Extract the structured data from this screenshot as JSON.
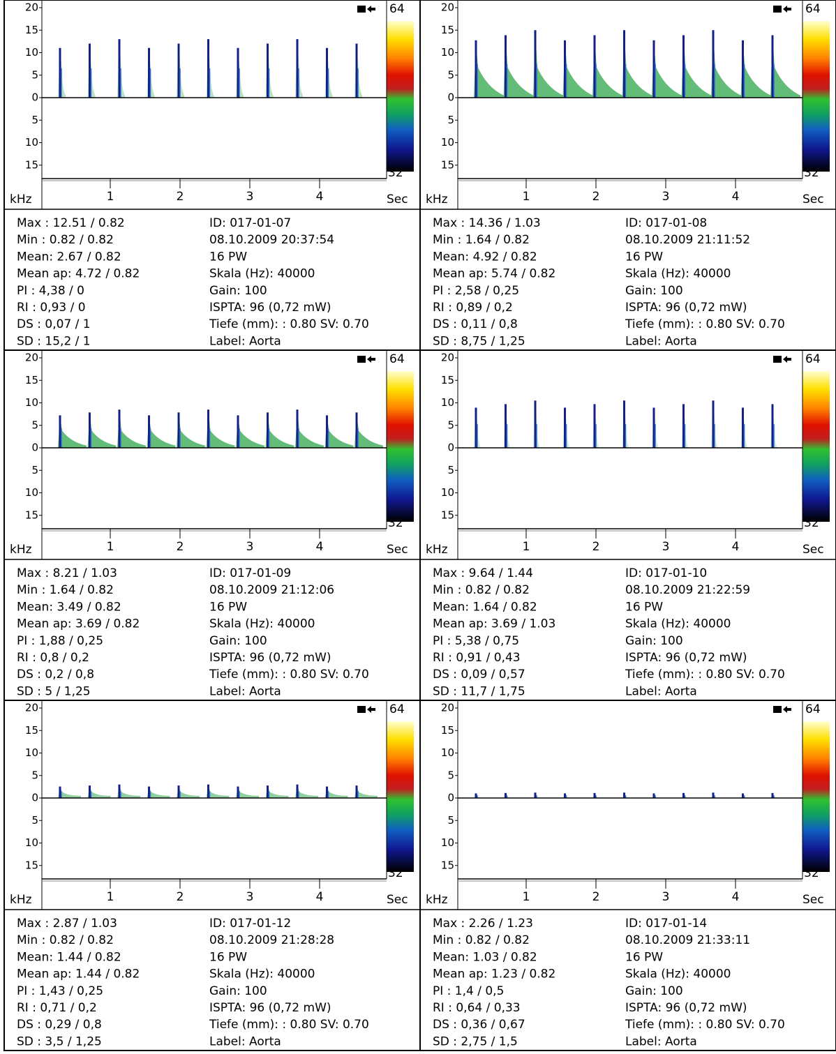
{
  "axes": {
    "ylim": [
      -20,
      20
    ],
    "yticks": [
      20,
      15,
      10,
      5,
      0,
      {
        "value": -5,
        "label": "5"
      },
      {
        "value": -10,
        "label": "10"
      },
      {
        "value": -15,
        "label": "15"
      }
    ],
    "xlim": [
      0,
      5
    ],
    "xticks": [
      1,
      2,
      3,
      4
    ],
    "y_unit": "kHz",
    "x_unit": "Sec",
    "scale_top": "64",
    "scale_bottom": "32"
  },
  "panels": [
    {
      "stats": [
        "Max : 12.51 / 0.82",
        "Min : 0.82 / 0.82",
        "Mean: 2.67 / 0.82",
        "Mean ap: 4.72 / 0.82",
        "PI : 4,38 / 0",
        "RI : 0,93 / 0",
        "DS : 0,07 / 1",
        "SD : 15,2 / 1"
      ],
      "info": [
        "ID: 017-01-07",
        "08.10.2009 20:37:54",
        "16 PW",
        "Skala (Hz): 40000",
        "Gain: 100",
        "ISPTA: 96 (0,72 mW)",
        "Tiefe (mm): : 0.80 SV: 0.70",
        "Label: Aorta"
      ]
    },
    {
      "stats": [
        "Max : 14.36 / 1.03",
        "Min : 1.64 / 0.82",
        "Mean: 4.92 / 0.82",
        "Mean ap: 5.74 / 0.82",
        "PI : 2,58 / 0,25",
        "RI : 0,89 / 0,2",
        "DS : 0,11 / 0,8",
        "SD : 8,75 / 1,25"
      ],
      "info": [
        "ID: 017-01-08",
        "08.10.2009 21:11:52",
        "16 PW",
        "Skala (Hz): 40000",
        "Gain: 100",
        "ISPTA: 96 (0,72 mW)",
        "Tiefe (mm): : 0.80 SV: 0.70",
        "Label: Aorta"
      ]
    },
    {
      "stats": [
        "Max : 8.21 / 1.03",
        "Min : 1.64 / 0.82",
        "Mean: 3.49 / 0.82",
        "Mean ap: 3.69 / 0.82",
        "PI : 1,88 / 0,25",
        "RI : 0,8 / 0,2",
        "DS : 0,2 / 0,8",
        "SD : 5 / 1,25"
      ],
      "info": [
        "ID: 017-01-09",
        "08.10.2009 21:12:06",
        "16 PW",
        "Skala (Hz): 40000",
        "Gain: 100",
        "ISPTA: 96 (0,72 mW)",
        "Tiefe (mm): : 0.80 SV: 0.70",
        "Label: Aorta"
      ]
    },
    {
      "stats": [
        "Max : 9.64 / 1.44",
        "Min : 0.82 / 0.82",
        "Mean: 1.64 / 0.82",
        "Mean ap: 3.69 / 1.03",
        "PI : 5,38 / 0,75",
        "RI : 0,91 / 0,43",
        "DS : 0,09 / 0,57",
        "SD : 11,7 / 1,75"
      ],
      "info": [
        "ID: 017-01-10",
        "08.10.2009 21:22:59",
        "16 PW",
        "Skala (Hz): 40000",
        "Gain: 100",
        "ISPTA: 96 (0,72 mW)",
        "Tiefe (mm): : 0.80 SV: 0.70",
        "Label: Aorta"
      ]
    },
    {
      "stats": [
        "Max : 2.87 / 1.03",
        "Min : 0.82 / 0.82",
        "Mean: 1.44 / 0.82",
        "Mean ap: 1.44 / 0.82",
        "PI : 1,43 / 0,25",
        "RI : 0,71 / 0,2",
        "DS : 0,29 / 0,8",
        "SD : 3,5 / 1,25"
      ],
      "info": [
        "ID: 017-01-12",
        "08.10.2009 21:28:28",
        "16 PW",
        "Skala (Hz): 40000",
        "Gain: 100",
        "ISPTA: 96 (0,72 mW)",
        "Tiefe (mm): : 0.80 SV: 0.70",
        "Label: Aorta"
      ]
    },
    {
      "stats": [
        "Max : 2.26 / 1.23",
        "Min : 0.82 / 0.82",
        "Mean: 1.03 / 0.82",
        "Mean ap: 1.23 / 0.82",
        "PI : 1,4 / 0,5",
        "RI : 0,64 / 0,33",
        "DS : 0,36 / 0,67",
        "SD : 2,75 / 1,5"
      ],
      "info": [
        "ID: 017-01-14",
        "08.10.2009 21:33:11",
        "16 PW",
        "Skala (Hz): 40000",
        "Gain: 100",
        "ISPTA: 96 (0,72 mW)",
        "Tiefe (mm): : 0.80 SV: 0.70",
        "Label: Aorta"
      ]
    }
  ]
}
